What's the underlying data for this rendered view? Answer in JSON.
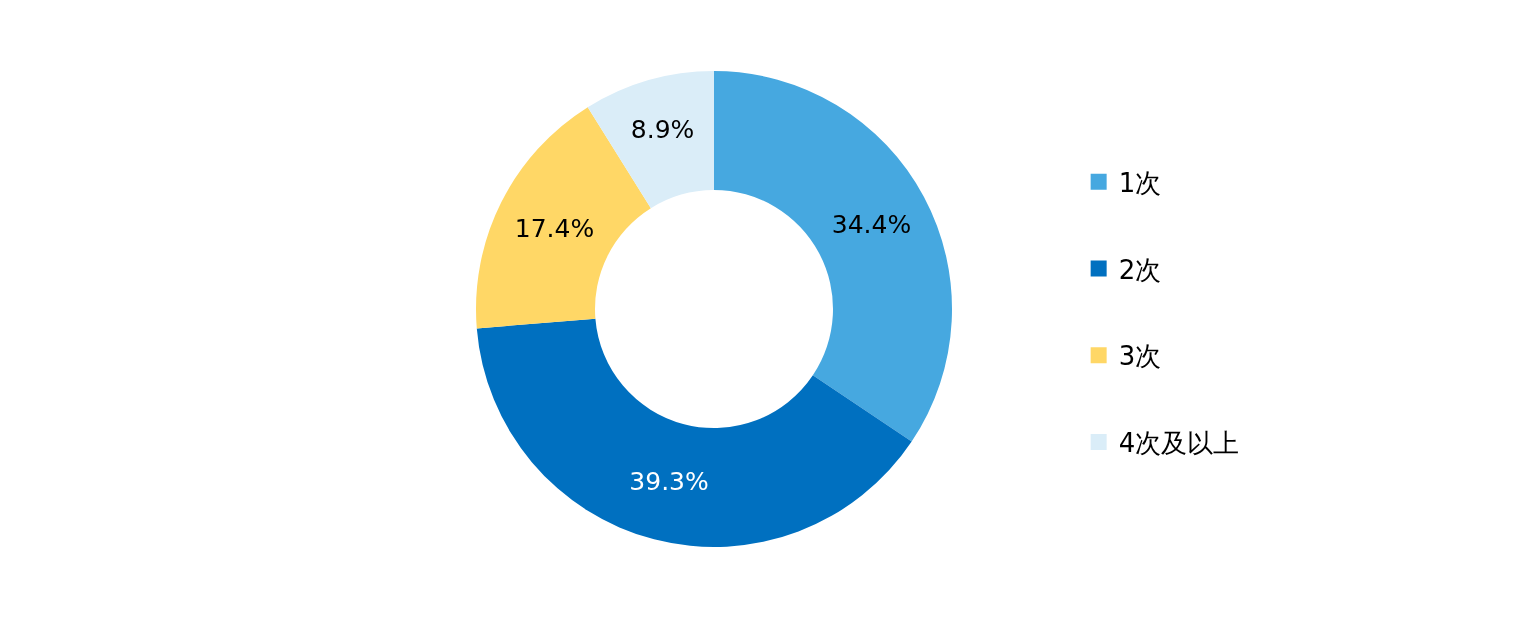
{
  "chart_data": {
    "type": "donut",
    "categories": [
      "1次",
      "2次",
      "3次",
      "4次及以上"
    ],
    "values": [
      34.4,
      39.3,
      17.4,
      8.9
    ],
    "colors": [
      "#46a8e0",
      "#0070c0",
      "#ffd766",
      "#daedf8"
    ],
    "value_labels": [
      "34.4%",
      "39.3%",
      "17.4%",
      "8.9%"
    ],
    "legend": "right"
  }
}
